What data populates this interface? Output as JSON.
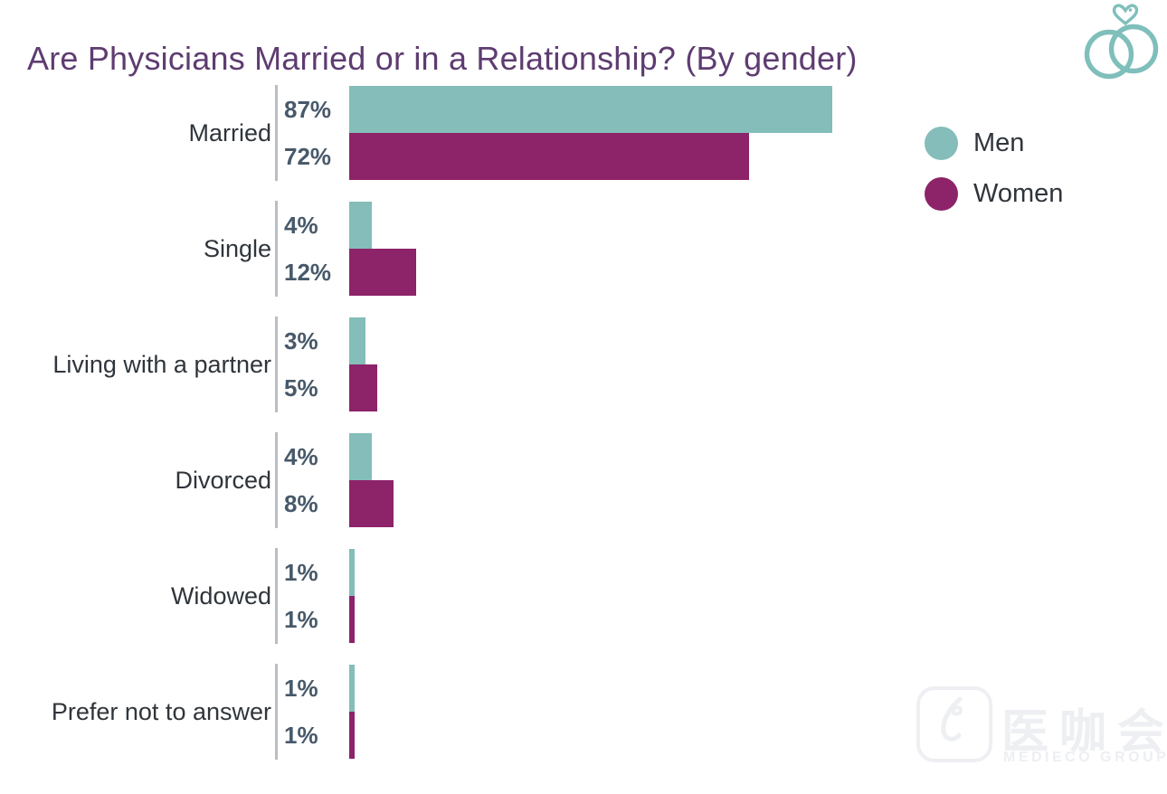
{
  "title": "Are Physicians Married or in a Relationship? (By gender)",
  "header_icon": "wedding-rings-heart-icon",
  "colors": {
    "men": "#84BDB9",
    "women": "#8D2369",
    "title_text": "#5E3C71",
    "value_label": "#47596A",
    "category_label": "#2F353B",
    "axis_line": "#B8BEC3",
    "icon_teal": "#7FBFBB"
  },
  "legend": [
    {
      "label": "Men",
      "color": "#84BDB9"
    },
    {
      "label": "Women",
      "color": "#8D2369"
    }
  ],
  "chart_data": {
    "type": "bar",
    "orientation": "horizontal",
    "title": "Are Physicians Married or in a Relationship? (By gender)",
    "categories": [
      "Married",
      "Single",
      "Living with a partner",
      "Divorced",
      "Widowed",
      "Prefer not to answer"
    ],
    "series": [
      {
        "name": "Men",
        "color": "#84BDB9",
        "values": [
          87,
          4,
          3,
          4,
          1,
          1
        ]
      },
      {
        "name": "Women",
        "color": "#8D2369",
        "values": [
          72,
          12,
          5,
          8,
          1,
          1
        ]
      }
    ],
    "value_suffix": "%",
    "xlim": [
      0,
      100
    ],
    "grid": false,
    "legend_position": "right-top",
    "value_labels_shown": true
  },
  "watermark": {
    "logo": "mediecogroup-logo",
    "cjk_text": "医咖会",
    "subtext": "MEDIECO GROUP"
  }
}
